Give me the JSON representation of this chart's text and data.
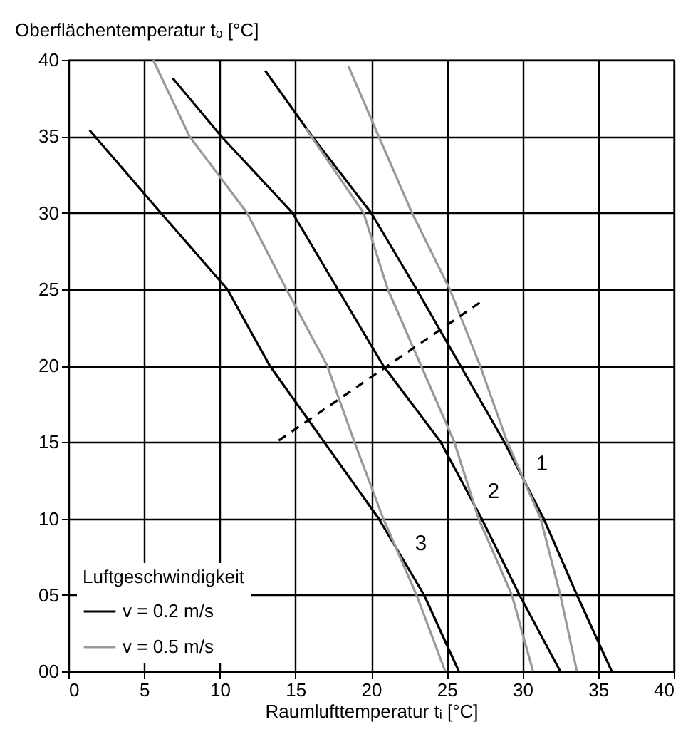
{
  "chart_data": {
    "type": "line",
    "xlabel": "Raumlufttemperatur  tᵢ [°C]",
    "ylabel": "Oberflächentemperatur tₒ [°C]",
    "legend_title": "Luftgeschwindigkeit",
    "legend": "bottom left",
    "grid": true,
    "marker": "none",
    "xlim": [
      0,
      40
    ],
    "xticks": [
      0,
      5,
      10,
      15,
      20,
      25,
      30,
      35,
      40
    ],
    "ylim": [
      0,
      40
    ],
    "yticks": [
      {
        "value": 0,
        "label": "00"
      },
      {
        "value": 5,
        "label": "05"
      },
      10,
      15,
      20,
      25,
      30,
      35,
      40
    ],
    "series": [
      {
        "name": "v = 0.2 m/s",
        "color": "#000000",
        "line_style": "solid",
        "x": [
          1.4,
          6.1,
          10.5,
          13.3,
          16.9,
          20.5,
          23.5,
          25.8
        ],
        "values": [
          35.4,
          30,
          25,
          20,
          15,
          10,
          5,
          0
        ]
      },
      {
        "color": "#000000",
        "line_style": "solid",
        "x": [
          6.9,
          10.1,
          14.8,
          17.8,
          20.8,
          24.6,
          27.3,
          29.8,
          32.5
        ],
        "values": [
          38.8,
          35,
          30,
          25,
          20,
          15,
          10,
          5,
          0
        ]
      },
      {
        "color": "#000000",
        "line_style": "solid",
        "x": [
          13.0,
          16.1,
          20.0,
          23.0,
          25.9,
          28.8,
          31.4,
          33.6,
          35.9
        ],
        "values": [
          39.3,
          35,
          30,
          25,
          20,
          15,
          10,
          5,
          0
        ]
      },
      {
        "name": "v = 0.5 m/s",
        "color": "#999999",
        "line_style": "solid",
        "x": [
          5.6,
          8.0,
          11.8,
          14.4,
          17.1,
          18.9,
          20.8,
          23.0,
          24.9
        ],
        "values": [
          40,
          35,
          30,
          25,
          20,
          15,
          10,
          5,
          0
        ]
      },
      {
        "color": "#999999",
        "line_style": "solid",
        "x": [
          15.7,
          19.5,
          21.1,
          23.3,
          25.5,
          27.1,
          29.3,
          30.7
        ],
        "values": [
          35.5,
          30,
          25,
          20,
          15,
          10,
          5,
          0
        ]
      },
      {
        "color": "#999999",
        "line_style": "solid",
        "x": [
          18.5,
          20.5,
          22.7,
          25.2,
          27.2,
          29.0,
          31.2,
          32.5,
          33.6
        ],
        "values": [
          39.6,
          35,
          30,
          25,
          20,
          15,
          10,
          5,
          0
        ]
      },
      {
        "color": "#000000",
        "line_style": "dashed",
        "x": [
          13.9,
          27.3
        ],
        "values": [
          15.1,
          24.2
        ]
      }
    ],
    "annotations": [
      {
        "text": "1",
        "x": 29.5,
        "y": 13.6
      },
      {
        "text": "2",
        "x": 26.3,
        "y": 11.8
      },
      {
        "text": "3",
        "x": 21.5,
        "y": 8.4
      }
    ]
  }
}
